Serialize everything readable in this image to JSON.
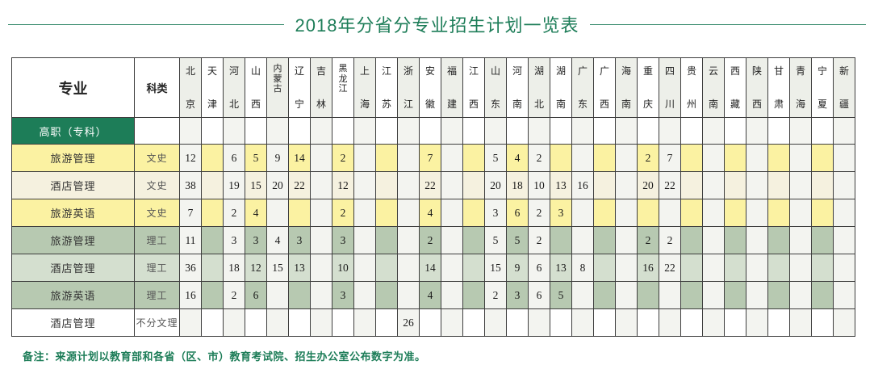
{
  "title": "2018年分省分专业招生计划一览表",
  "table": {
    "major_header": "专业",
    "category_header": "科类",
    "provinces": [
      "北京",
      "天津",
      "河北",
      "山西",
      "内蒙古",
      "辽宁",
      "吉林",
      "黑龙江",
      "上海",
      "江苏",
      "浙江",
      "安徽",
      "福建",
      "江西",
      "山东",
      "河南",
      "湖北",
      "湖南",
      "广东",
      "广西",
      "海南",
      "重庆",
      "四川",
      "贵州",
      "云南",
      "西藏",
      "陕西",
      "甘肃",
      "青海",
      "宁夏",
      "新疆"
    ],
    "section_label": "高职（专科）",
    "rows": [
      {
        "major": "旅游管理",
        "category": "文史",
        "tone": "yellow",
        "values": [
          "12",
          "",
          "6",
          "5",
          "9",
          "14",
          "",
          "2",
          "",
          "",
          "",
          "7",
          "",
          "",
          "5",
          "4",
          "2",
          "",
          "",
          "",
          "",
          "2",
          "7",
          "",
          "",
          "",
          "",
          "",
          "",
          "",
          ""
        ]
      },
      {
        "major": "酒店管理",
        "category": "文史",
        "tone": "cream",
        "values": [
          "38",
          "",
          "19",
          "15",
          "20",
          "22",
          "",
          "12",
          "",
          "",
          "",
          "22",
          "",
          "",
          "20",
          "18",
          "10",
          "13",
          "16",
          "",
          "",
          "20",
          "22",
          "",
          "",
          "",
          "",
          "",
          "",
          "",
          ""
        ]
      },
      {
        "major": "旅游英语",
        "category": "文史",
        "tone": "yellow",
        "values": [
          "7",
          "",
          "2",
          "4",
          "",
          "",
          "",
          "2",
          "",
          "",
          "",
          "4",
          "",
          "",
          "3",
          "6",
          "2",
          "3",
          "",
          "",
          "",
          "",
          "",
          "",
          "",
          "",
          "",
          "",
          "",
          "",
          ""
        ]
      },
      {
        "major": "旅游管理",
        "category": "理工",
        "tone": "sage",
        "values": [
          "11",
          "",
          "3",
          "3",
          "4",
          "3",
          "",
          "3",
          "",
          "",
          "",
          "2",
          "",
          "",
          "5",
          "5",
          "2",
          "",
          "",
          "",
          "",
          "2",
          "2",
          "",
          "",
          "",
          "",
          "",
          "",
          "",
          ""
        ]
      },
      {
        "major": "酒店管理",
        "category": "理工",
        "tone": "sagelight",
        "values": [
          "36",
          "",
          "18",
          "12",
          "15",
          "13",
          "",
          "10",
          "",
          "",
          "",
          "14",
          "",
          "",
          "15",
          "9",
          "6",
          "13",
          "8",
          "",
          "",
          "16",
          "22",
          "",
          "",
          "",
          "",
          "",
          "",
          "",
          ""
        ]
      },
      {
        "major": "旅游英语",
        "category": "理工",
        "tone": "sage",
        "values": [
          "16",
          "",
          "2",
          "6",
          "",
          "",
          "",
          "3",
          "",
          "",
          "",
          "4",
          "",
          "",
          "2",
          "3",
          "6",
          "5",
          "",
          "",
          "",
          "",
          "",
          "",
          "",
          "",
          "",
          "",
          "",
          "",
          ""
        ]
      },
      {
        "major": "酒店管理",
        "category": "不分文理",
        "tone": "plain",
        "values": [
          "",
          "",
          "",
          "",
          "",
          "",
          "",
          "",
          "",
          "",
          "26",
          "",
          "",
          "",
          "",
          "",
          "",
          "",
          "",
          "",
          "",
          "",
          "",
          "",
          "",
          "",
          "",
          "",
          "",
          "",
          ""
        ]
      }
    ]
  },
  "footer": {
    "note": "备注：来源计划以教育部和各省（区、市）教育考试院、招生办公室公布数字为准。"
  },
  "colors": {
    "accent_green": "#1D7D58",
    "rule_green": "#35896A",
    "border": "#3E3E3E",
    "row_yellow": "#FBF2A2",
    "row_cream": "#F5F1DF",
    "row_sage": "#B7C9B1",
    "row_sage_light": "#D4DFCF",
    "column_stripe": "#F3F4F0",
    "header_stripe": "#EDEFE9"
  }
}
